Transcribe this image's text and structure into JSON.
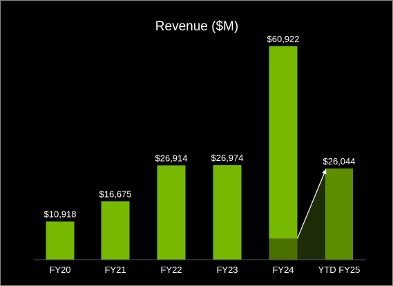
{
  "chart_data": {
    "type": "bar",
    "title": "Revenue ($M)",
    "xlabel": "",
    "ylabel": "",
    "ylim": [
      0,
      66000
    ],
    "grid": false,
    "legend": "none",
    "categories": [
      "FY20",
      "FY21",
      "FY22",
      "FY23",
      "FY24",
      "YTD FY25"
    ],
    "values": [
      10918,
      16675,
      26914,
      26974,
      60922,
      26044
    ],
    "value_labels": [
      "$10,918",
      "$16,675",
      "$26,914",
      "$26,974",
      "$60,922",
      "$26,044"
    ],
    "fy24_ytd_comparison_value": 6051,
    "colors": {
      "bar": "#76b900",
      "bar_ytd": "#5d8e00",
      "comparison_segment": "#4a7000",
      "shaded_band": "#1e2c0a",
      "background": "#000000",
      "text": "#ffffff",
      "axis": "#555555"
    }
  }
}
